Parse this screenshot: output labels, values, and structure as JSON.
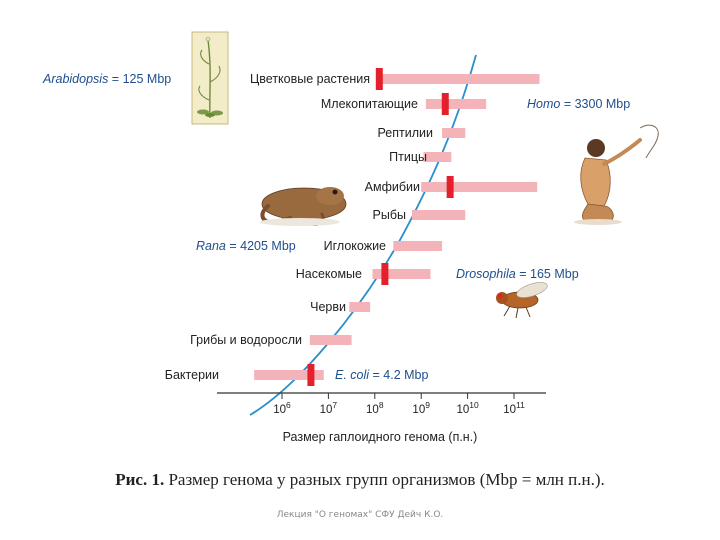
{
  "chart_data": {
    "type": "range-bar",
    "xlabel": "Размер гаплоидного генома (п.н.)",
    "x_scale": "log10",
    "x_ticks": [
      "10^6",
      "10^7",
      "10^8",
      "10^9",
      "10^10",
      "10^11"
    ],
    "xlim_log10": [
      5.0,
      12.0
    ],
    "categories": [
      {
        "name": "Цветковые растения",
        "range_log10": [
          8.05,
          11.55
        ]
      },
      {
        "name": "Млекопитающие",
        "range_log10": [
          9.1,
          10.4
        ]
      },
      {
        "name": "Рептилии",
        "range_log10": [
          9.45,
          9.95
        ]
      },
      {
        "name": "Птицы",
        "range_log10": [
          9.05,
          9.65
        ]
      },
      {
        "name": "Амфибии",
        "range_log10": [
          9.0,
          11.5
        ]
      },
      {
        "name": "Рыбы",
        "range_log10": [
          8.8,
          9.95
        ]
      },
      {
        "name": "Иглокожие",
        "range_log10": [
          8.4,
          9.45
        ]
      },
      {
        "name": "Насекомые",
        "range_log10": [
          7.95,
          9.2
        ]
      },
      {
        "name": "Черви",
        "range_log10": [
          7.45,
          7.9
        ]
      },
      {
        "name": "Грибы и водоросли",
        "range_log10": [
          6.6,
          7.5
        ]
      },
      {
        "name": "Бактерии",
        "range_log10": [
          5.4,
          6.9
        ]
      }
    ],
    "markers": [
      {
        "category": "Цветковые растения",
        "label": "Arabidopsis = 125 Mbp",
        "value_bp": 125000000
      },
      {
        "category": "Млекопитающие",
        "label": "Homo = 3300 Mbp",
        "value_bp": 3300000000
      },
      {
        "category": "Амфибии",
        "label": "Rana = 4205 Mbp",
        "value_bp": 4205000000
      },
      {
        "category": "Насекомые",
        "label": "Drosophila = 165 Mbp",
        "value_bp": 165000000
      },
      {
        "category": "Бактерии",
        "label": "E. coli = 4.2 Mbp",
        "value_bp": 4200000
      }
    ],
    "colors": {
      "range": "#f4b3b8",
      "marker": "#e3202b",
      "curve": "#2a90cc",
      "axis": "#333333"
    }
  },
  "caption": {
    "lead": "Рис. 1.",
    "text": " Размер генома у разных групп организмов (Mbp = млн п.н.)."
  },
  "footer": "Лекция \"О геномах\" СФУ Дейч К.О.",
  "illustrations": [
    "arabidopsis-plant",
    "human-figure",
    "frog",
    "drosophila-fly"
  ]
}
